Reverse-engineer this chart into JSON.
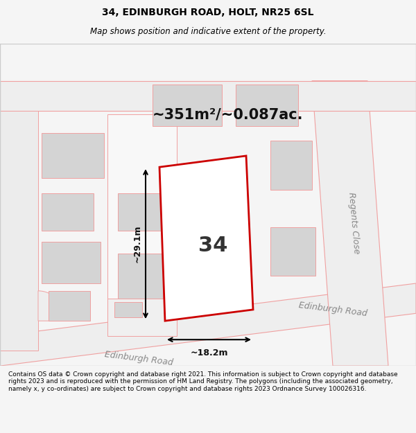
{
  "title": "34, EDINBURGH ROAD, HOLT, NR25 6SL",
  "subtitle": "Map shows position and indicative extent of the property.",
  "area_text": "~351m²/~0.087ac.",
  "width_label": "~18.2m",
  "height_label": "~29.1m",
  "property_number": "34",
  "road_label_bottom": "Edinburgh Road",
  "road_label_right": "Regents Close",
  "road_label_diagonal": "Edinburgh Road",
  "footer_text": "Contains OS data © Crown copyright and database right 2021. This information is subject to Crown copyright and database rights 2023 and is reproduced with the permission of HM Land Registry. The polygons (including the associated geometry, namely x, y co-ordinates) are subject to Crown copyright and database rights 2023 Ordnance Survey 100026316.",
  "bg_color": "#f5f5f5",
  "map_bg": "#ffffff",
  "road_fill": "#e8e8e8",
  "building_fill": "#d4d4d4",
  "property_outline": "#cc0000",
  "line_color_light": "#f0a0a0",
  "measure_line_color": "#000000",
  "footer_bg": "#ffffff",
  "title_bg": "#f0f0f0"
}
